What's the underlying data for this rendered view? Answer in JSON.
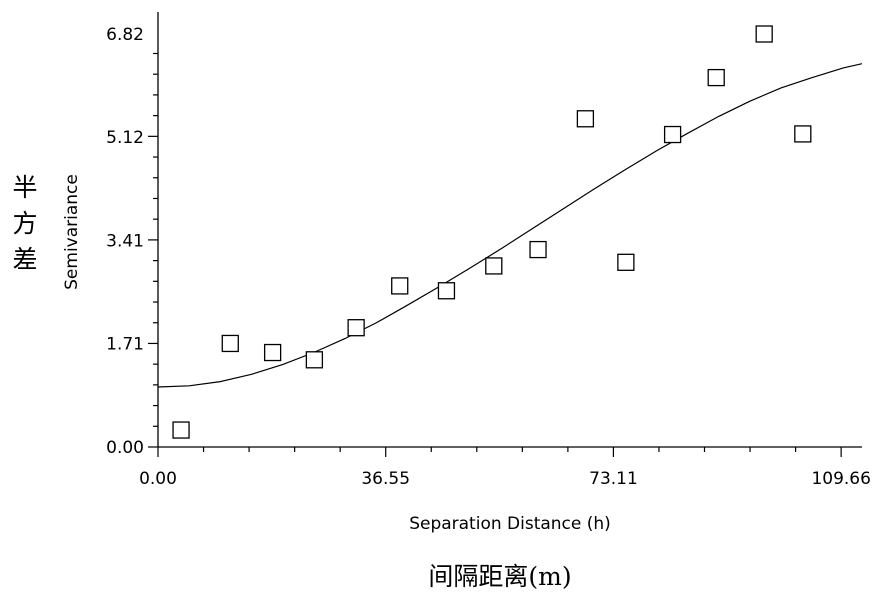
{
  "chart_data": {
    "type": "scatter",
    "xlabel": "Separation Distance (h)",
    "ylabel": "Semivariance",
    "xlabel_cn": "间隔距离(m)",
    "ylabel_cn": [
      "半",
      "方",
      "差"
    ],
    "xlim": [
      0,
      113
    ],
    "ylim": [
      0,
      6.82
    ],
    "xticks": [
      0.0,
      36.55,
      73.11,
      109.66
    ],
    "xtick_labels": [
      "0.00",
      "36.55",
      "73.11",
      "109.66"
    ],
    "yticks": [
      0.0,
      1.71,
      3.41,
      5.12,
      6.82
    ],
    "ytick_labels": [
      "0.00",
      "1.71",
      "3.41",
      "5.12",
      "6.82"
    ],
    "grid": false,
    "legend": "none",
    "marker": "open-square",
    "series": [
      {
        "type": "scatter",
        "x": [
          3.7,
          11.6,
          18.4,
          25.1,
          31.8,
          38.8,
          46.3,
          53.9,
          61.0,
          68.6,
          75.1,
          82.6,
          89.6,
          97.3,
          103.5
        ],
        "y": [
          0.28,
          1.71,
          1.56,
          1.44,
          1.97,
          2.66,
          2.58,
          2.99,
          3.26,
          5.42,
          3.05,
          5.16,
          6.1,
          6.82,
          5.17
        ]
      },
      {
        "type": "line",
        "x": [
          0,
          5,
          10,
          15,
          20,
          25,
          30,
          35,
          40,
          45,
          50,
          55,
          60,
          65,
          70,
          75,
          80,
          85,
          90,
          95,
          100,
          105,
          110,
          113
        ],
        "y": [
          0.99,
          1.01,
          1.08,
          1.2,
          1.36,
          1.56,
          1.79,
          2.05,
          2.34,
          2.64,
          2.95,
          3.27,
          3.6,
          3.93,
          4.26,
          4.58,
          4.89,
          5.18,
          5.46,
          5.71,
          5.93,
          6.1,
          6.26,
          6.33
        ]
      }
    ]
  }
}
